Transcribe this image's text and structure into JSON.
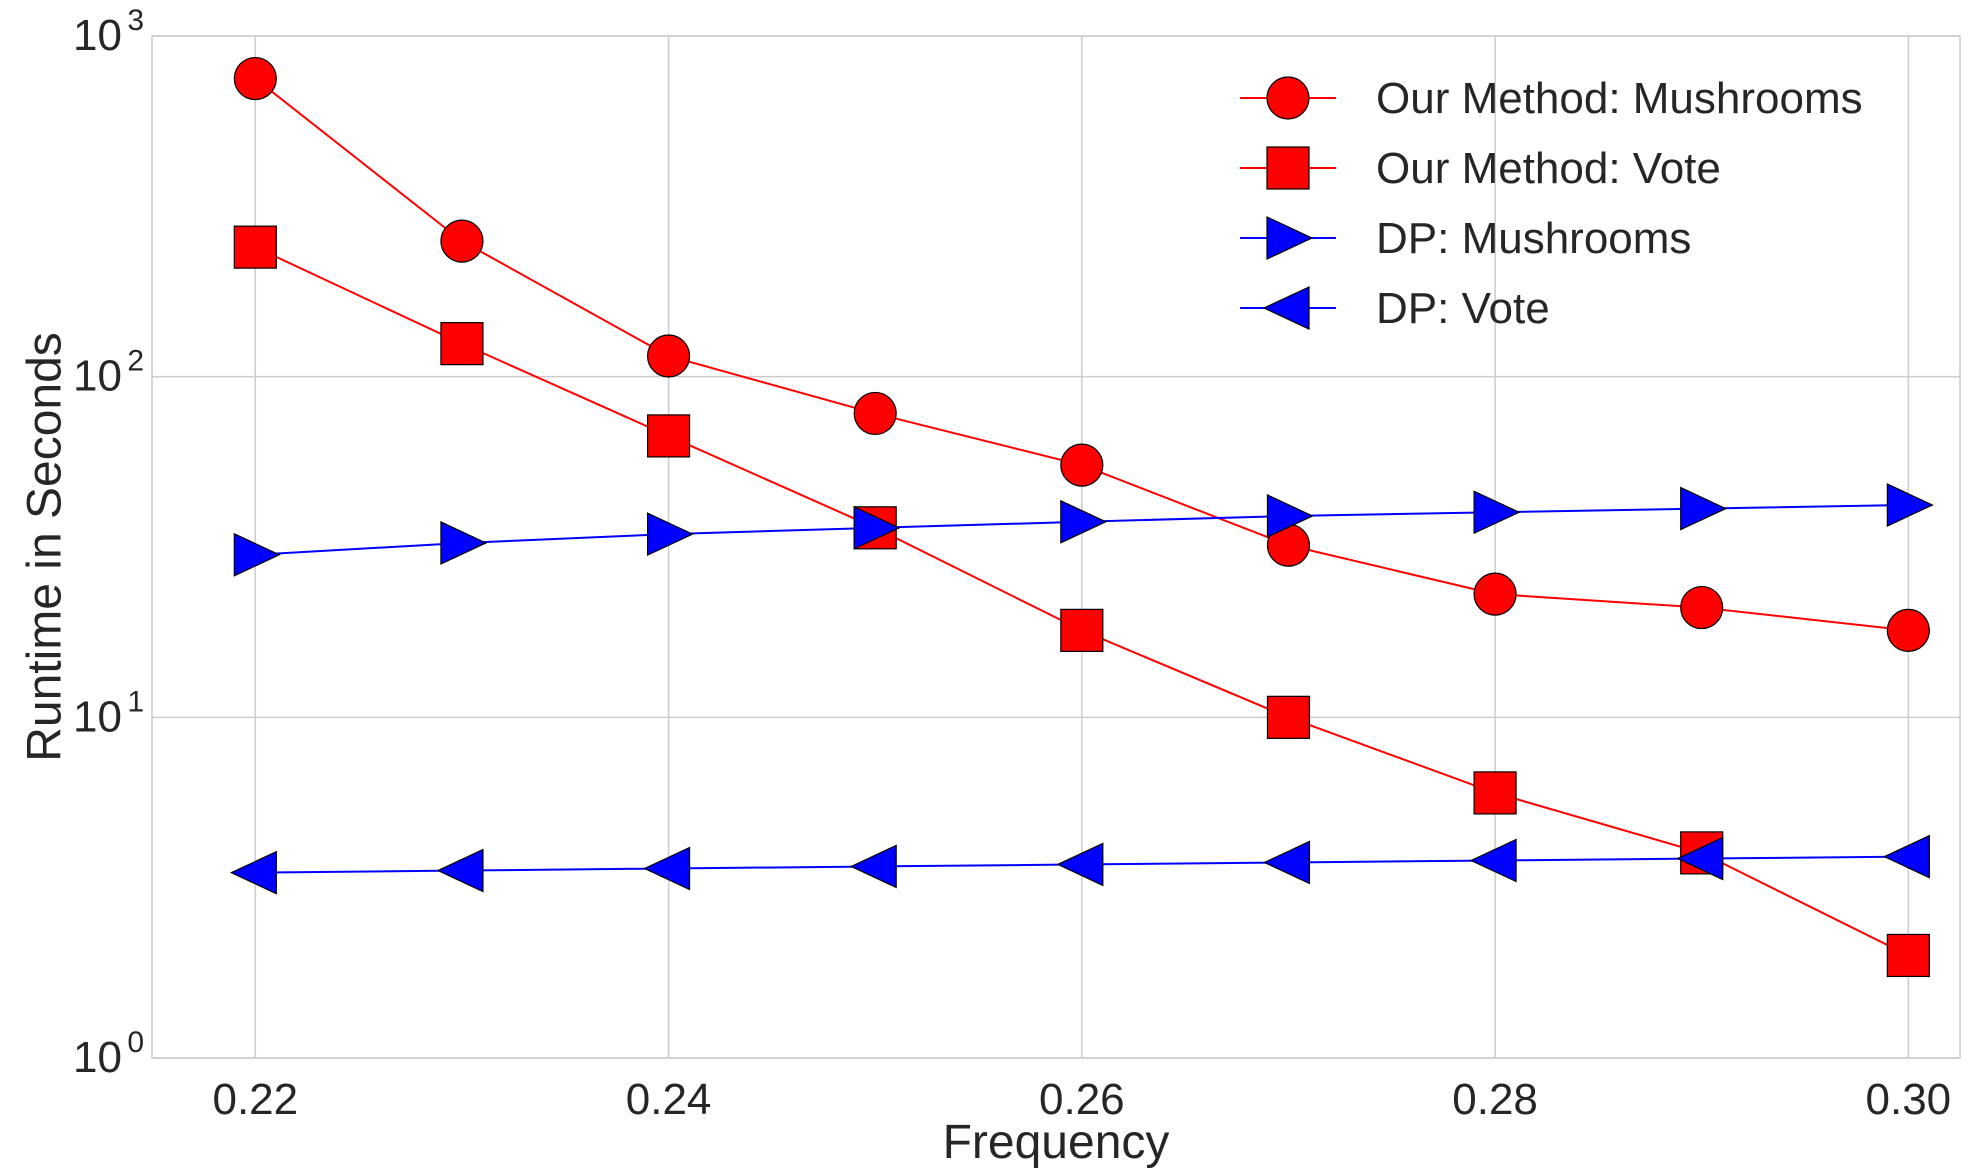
{
  "chart_data": {
    "type": "line",
    "xlabel": "Frequency",
    "ylabel": "Runtime in Seconds",
    "x": [
      0.22,
      0.23,
      0.24,
      0.25,
      0.26,
      0.27,
      0.28,
      0.29,
      0.3
    ],
    "xlim": [
      0.215,
      0.3025
    ],
    "xticks": [
      "0.22",
      "0.24",
      "0.26",
      "0.28",
      "0.30"
    ],
    "xtick_values": [
      0.22,
      0.24,
      0.26,
      0.28,
      0.3
    ],
    "ylim": [
      1,
      1000
    ],
    "yscale": "log",
    "yticks": [
      {
        "value": 1,
        "base": "10",
        "exp": "0"
      },
      {
        "value": 10,
        "base": "10",
        "exp": "1"
      },
      {
        "value": 100,
        "base": "10",
        "exp": "2"
      },
      {
        "value": 1000,
        "base": "10",
        "exp": "3"
      }
    ],
    "grid": true,
    "legend_position": "top-right",
    "series": [
      {
        "name": "Our Method: Mushrooms",
        "marker": "circle",
        "color": "#ff0000",
        "values": [
          750,
          250,
          115,
          78,
          55,
          32,
          23,
          21,
          18
        ]
      },
      {
        "name": "Our Method: Vote",
        "marker": "square",
        "color": "#ff0000",
        "values": [
          240,
          125,
          67,
          36,
          18,
          10,
          6,
          4,
          2
        ]
      },
      {
        "name": "DP: Mushrooms",
        "marker": "triangle-right",
        "color": "#0000ff",
        "values": [
          30,
          32.5,
          34.5,
          36,
          37.5,
          39,
          40,
          41,
          42
        ]
      },
      {
        "name": "DP: Vote",
        "marker": "triangle-left",
        "color": "#0000ff",
        "values": [
          3.5,
          3.55,
          3.6,
          3.65,
          3.7,
          3.75,
          3.8,
          3.85,
          3.9
        ]
      }
    ]
  }
}
